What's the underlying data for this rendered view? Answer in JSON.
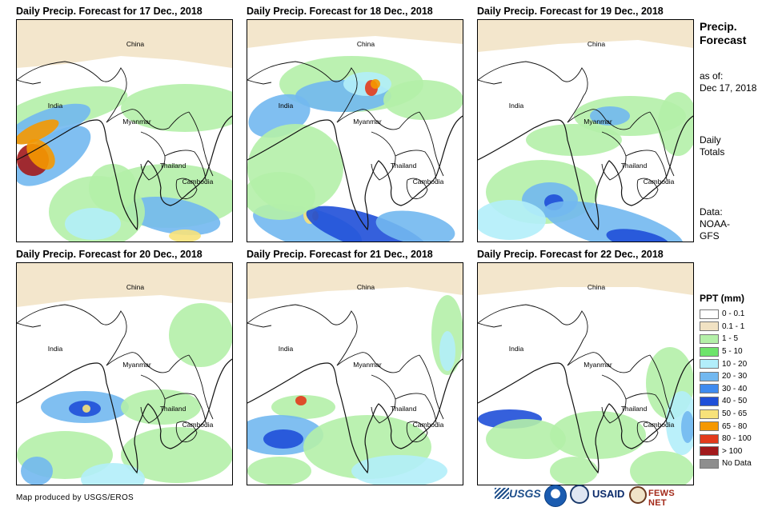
{
  "panels": [
    {
      "title": "Daily Precip. Forecast for 17 Dec., 2018"
    },
    {
      "title": "Daily Precip. Forecast for 18 Dec., 2018"
    },
    {
      "title": "Daily Precip. Forecast for 19 Dec., 2018"
    },
    {
      "title": "Daily Precip. Forecast for 20 Dec., 2018"
    },
    {
      "title": "Daily Precip. Forecast for 21 Dec., 2018"
    },
    {
      "title": "Daily Precip. Forecast for 22 Dec., 2018"
    }
  ],
  "map_labels": {
    "china": "China",
    "india": "India",
    "myanmar": "Myanmar",
    "thailand": "Thailand",
    "cambodia": "Cambodia"
  },
  "sidebar": {
    "title": "Precip. Forecast",
    "as_of_label": "as of:",
    "as_of_date": "Dec 17, 2018",
    "totals_line1": "Daily",
    "totals_line2": "Totals",
    "data_line1": "Data:",
    "data_line2": "NOAA-",
    "data_line3": "GFS"
  },
  "legend": {
    "title": "PPT (mm)",
    "items": [
      {
        "label": "0 - 0.1",
        "color": "#ffffff"
      },
      {
        "label": "0.1 - 1",
        "color": "#f1e2c3"
      },
      {
        "label": "1 - 5",
        "color": "#b4f0a8"
      },
      {
        "label": "5 - 10",
        "color": "#6ee46a"
      },
      {
        "label": "10 - 20",
        "color": "#b2eefa"
      },
      {
        "label": "20 - 30",
        "color": "#72b8f0"
      },
      {
        "label": "30 - 40",
        "color": "#3f8bef"
      },
      {
        "label": "40 - 50",
        "color": "#1f4fd8"
      },
      {
        "label": "50 - 65",
        "color": "#f7e27a"
      },
      {
        "label": "65 - 80",
        "color": "#f59800"
      },
      {
        "label": "80 - 100",
        "color": "#e23b1c"
      },
      {
        "label": "> 100",
        "color": "#a2191b"
      },
      {
        "label": "No Data",
        "color": "#8e8e8e"
      }
    ]
  },
  "credit": "Map produced by USGS/EROS",
  "logos": {
    "usgs": "USGS",
    "usaid": "USAID",
    "fews": "FEWS NET"
  }
}
